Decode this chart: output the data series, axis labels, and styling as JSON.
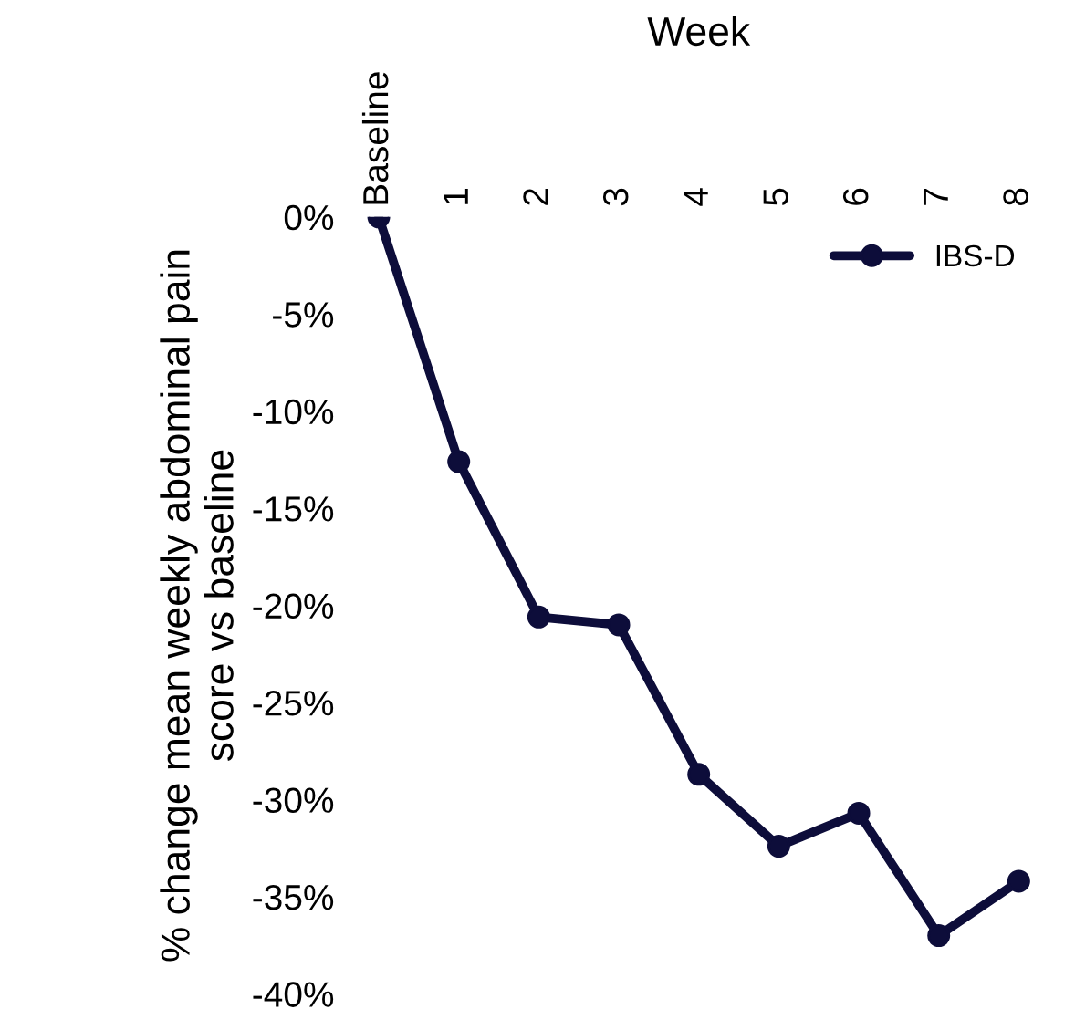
{
  "chart_data": {
    "type": "line",
    "xlabel": "Week",
    "ylabel": "% change mean weekly abdominal pain score vs baseline",
    "categories": [
      "Baseline",
      "1",
      "2",
      "3",
      "4",
      "5",
      "6",
      "7",
      "8"
    ],
    "series": [
      {
        "name": "IBS-D",
        "color": "#0d0d3a",
        "values": [
          0,
          -12.6,
          -20.6,
          -21.0,
          -28.7,
          -32.4,
          -30.7,
          -37.0,
          -34.2
        ]
      }
    ],
    "ylim": [
      -40,
      0
    ],
    "yticks": [
      {
        "value": 0,
        "label": "0%"
      },
      {
        "value": -5,
        "label": "-5%"
      },
      {
        "value": -10,
        "label": "-10%"
      },
      {
        "value": -15,
        "label": "-15%"
      },
      {
        "value": -20,
        "label": "-20%"
      },
      {
        "value": -25,
        "label": "-25%"
      },
      {
        "value": -30,
        "label": "-30%"
      },
      {
        "value": -35,
        "label": "-35%"
      },
      {
        "value": -40,
        "label": "-40%"
      }
    ],
    "grid": false,
    "legend": "top right",
    "marker": "circle",
    "line_style": "solid"
  }
}
